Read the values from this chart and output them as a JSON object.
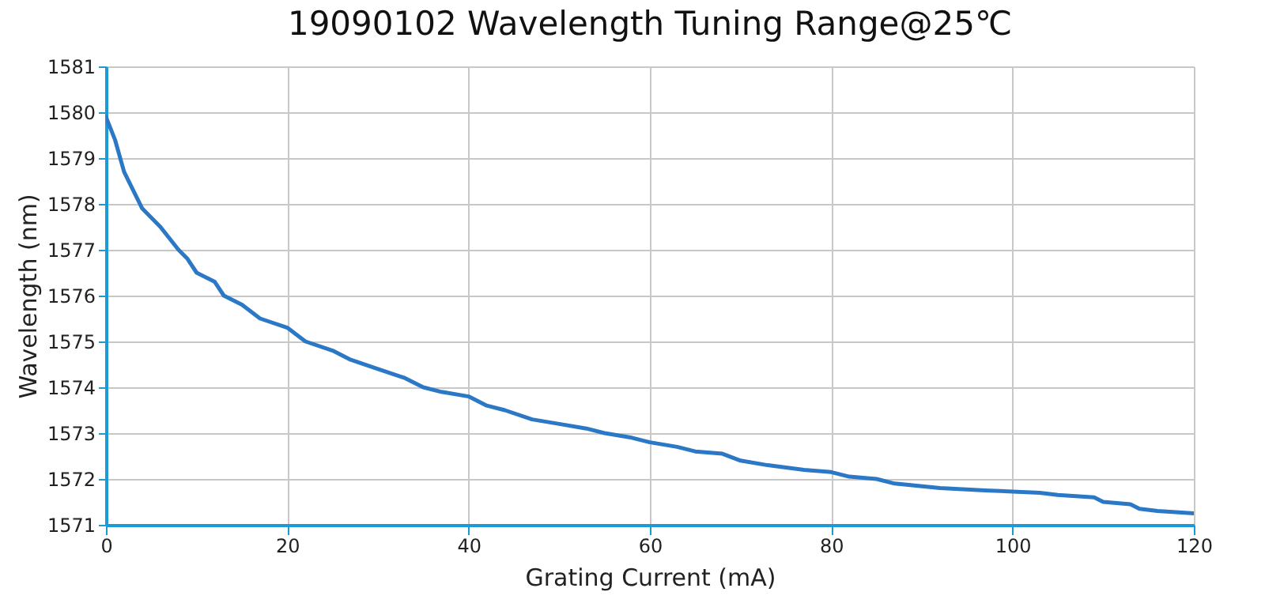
{
  "chart_data": {
    "type": "line",
    "title": "19090102 Wavelength Tuning Range@25℃",
    "xlabel": "Grating Current (mA)",
    "ylabel": "Wavelength (nm)",
    "x": [
      0,
      1,
      2,
      3,
      4,
      6,
      8,
      9,
      10,
      12,
      13,
      15,
      17,
      20,
      22,
      25,
      27,
      30,
      33,
      35,
      37,
      40,
      42,
      44,
      47,
      50,
      53,
      55,
      58,
      60,
      63,
      65,
      68,
      70,
      73,
      77,
      80,
      82,
      85,
      87,
      92,
      97,
      103,
      105,
      109,
      110,
      113,
      114,
      116,
      120
    ],
    "series": [
      {
        "color": "#2a78c6",
        "values": [
          1579.9,
          1579.4,
          1578.7,
          1578.3,
          1577.9,
          1577.5,
          1577.0,
          1576.8,
          1576.5,
          1576.3,
          1576.0,
          1575.8,
          1575.5,
          1575.3,
          1575.0,
          1574.8,
          1574.6,
          1574.4,
          1574.2,
          1574.0,
          1573.9,
          1573.8,
          1573.6,
          1573.5,
          1573.3,
          1573.2,
          1573.1,
          1573.0,
          1572.9,
          1572.8,
          1572.7,
          1572.6,
          1572.55,
          1572.4,
          1572.3,
          1572.2,
          1572.15,
          1572.05,
          1572.0,
          1571.9,
          1571.8,
          1571.75,
          1571.7,
          1571.65,
          1571.6,
          1571.5,
          1571.45,
          1571.35,
          1571.3,
          1571.25
        ]
      }
    ],
    "xlim": [
      0,
      120
    ],
    "xticks": [
      0,
      20,
      40,
      60,
      80,
      100,
      120
    ],
    "ylim": [
      1571,
      1581
    ],
    "yticks": [
      1571,
      1572,
      1573,
      1574,
      1575,
      1576,
      1577,
      1578,
      1579,
      1580,
      1581
    ],
    "grid": true,
    "legend": false,
    "marker": "none",
    "line_style": "solid"
  }
}
